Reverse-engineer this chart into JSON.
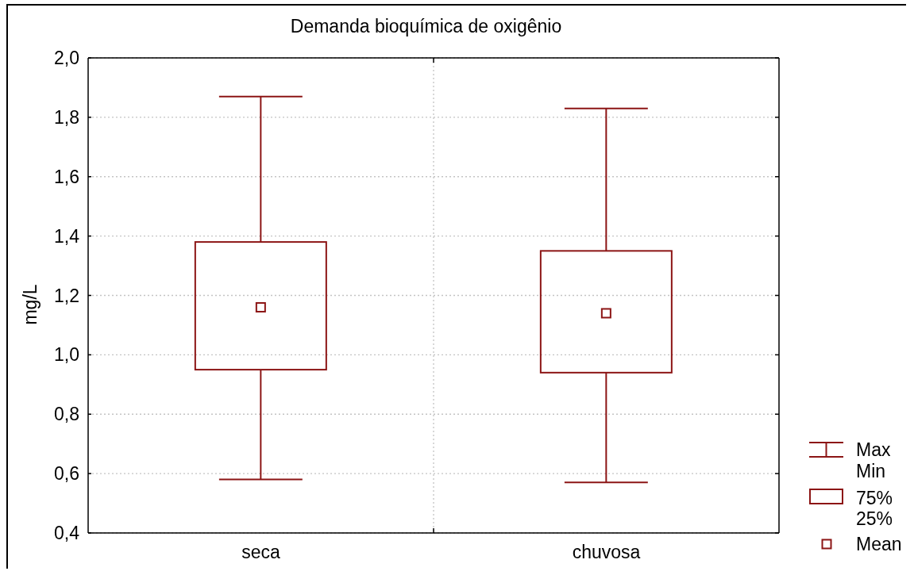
{
  "chart_data": {
    "type": "box",
    "title": "Demanda bioquímica de oxigênio",
    "ylabel": "mg/L",
    "categories": [
      "seca",
      "chuvosa"
    ],
    "color": "#8c1515",
    "boxes": [
      {
        "low": 0.58,
        "q1": 0.95,
        "median": null,
        "q3": 1.38,
        "high": 1.87,
        "mean": 1.16
      },
      {
        "low": 0.57,
        "q1": 0.94,
        "median": null,
        "q3": 1.35,
        "high": 1.83,
        "mean": 1.14
      }
    ],
    "ylim": [
      0.4,
      2.0
    ],
    "yticks": [
      {
        "value": 0.4,
        "label": "0,4"
      },
      {
        "value": 0.6,
        "label": "0,6"
      },
      {
        "value": 0.8,
        "label": "0,8"
      },
      {
        "value": 1.0,
        "label": "1,0"
      },
      {
        "value": 1.2,
        "label": "1,2"
      },
      {
        "value": 1.4,
        "label": "1,4"
      },
      {
        "value": 1.6,
        "label": "1,6"
      },
      {
        "value": 1.8,
        "label": "1,8"
      },
      {
        "value": 2.0,
        "label": "2,0"
      }
    ],
    "grid": true,
    "marker": "square",
    "annotations": [
      "Max",
      "Min",
      "75%",
      "25%",
      "Mean"
    ]
  }
}
